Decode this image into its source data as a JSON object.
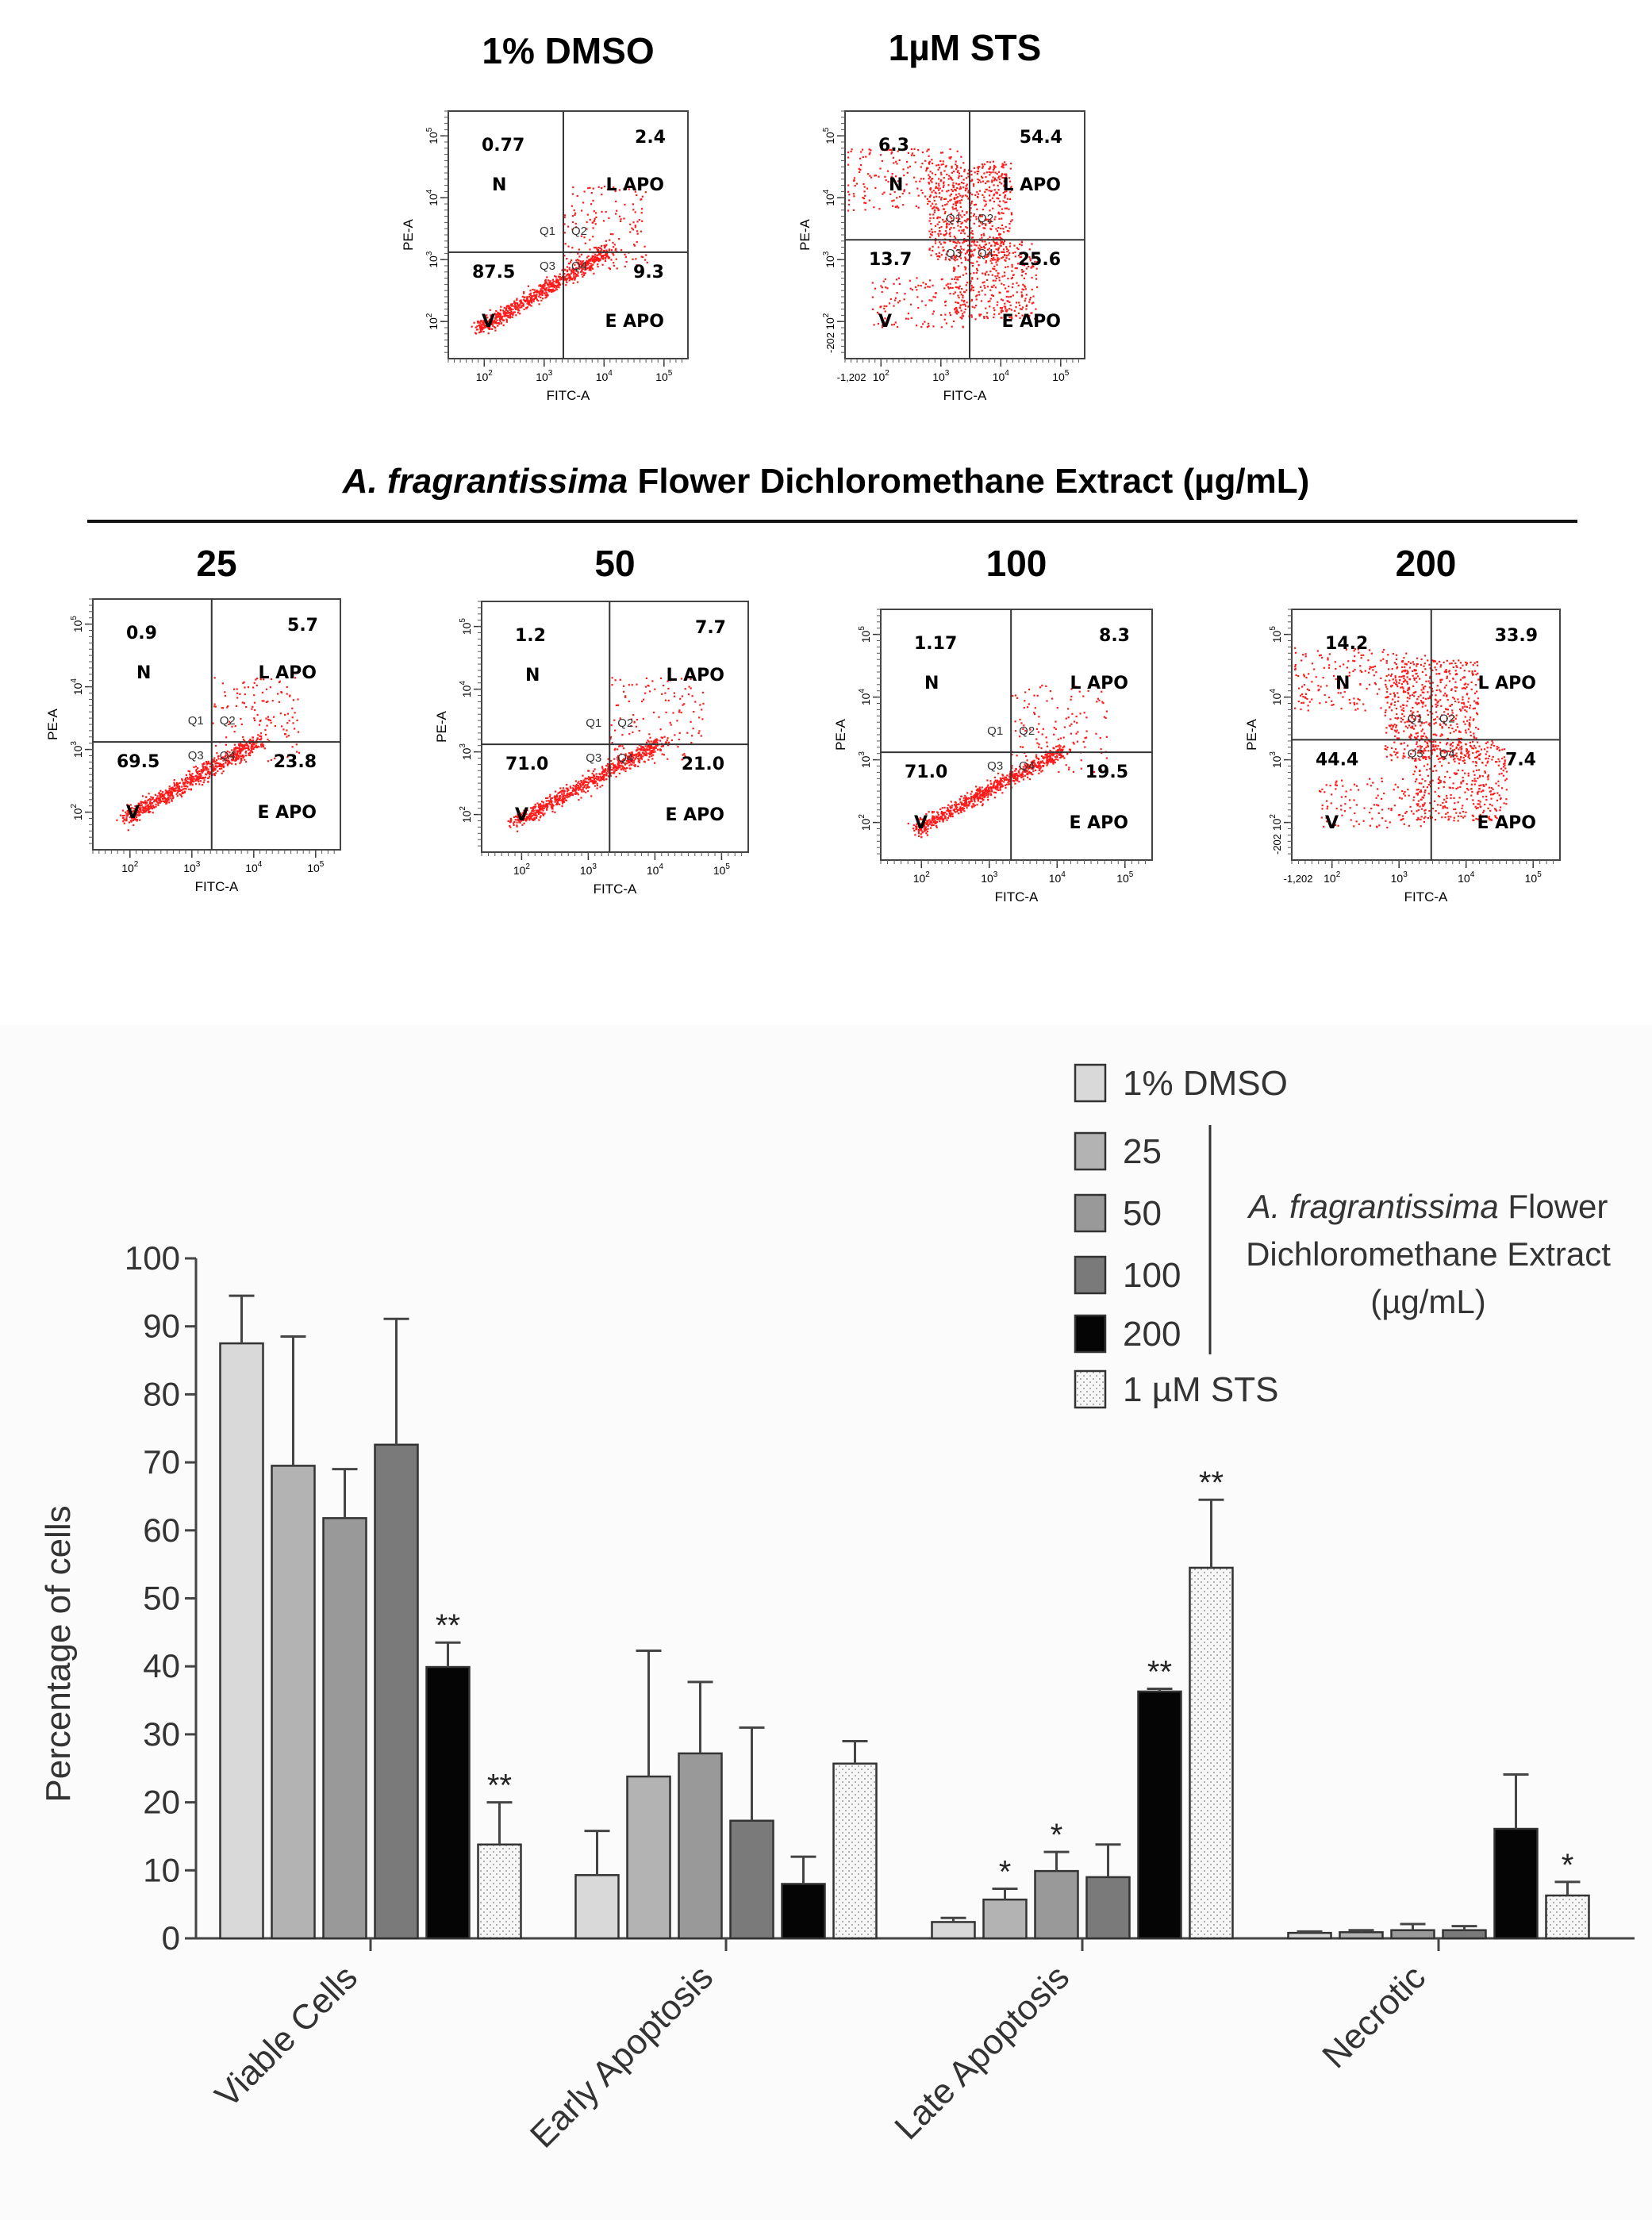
{
  "flow_panels": [
    {
      "title": "1% DMSO",
      "xlabel": "FITC-A",
      "ylabel": "PE-A",
      "q_tl": "0.77",
      "q_tr": "2.4",
      "q_bl": "87.5",
      "q_br": "9.3",
      "lab_n": "N",
      "lab_lapo": "L APO",
      "lab_v": "V",
      "lab_eapo": "E APO",
      "q1": "Q1",
      "q2": "Q2",
      "q3": "Q3",
      "q4": "Q4",
      "dense": "low"
    },
    {
      "title": "1µM STS",
      "xlabel": "FITC-A",
      "ylabel": "PE-A",
      "q_tl": "6.3",
      "q_tr": "54.4",
      "q_bl": "13.7",
      "q_br": "25.6",
      "lab_n": "N",
      "lab_lapo": "L APO",
      "lab_v": "V",
      "lab_eapo": "E APO",
      "q1": "Q1",
      "q2": "Q2",
      "q3": "Q3",
      "q4": "Q4",
      "dense": "high",
      "neg_tick_x": "-1,202",
      "neg_tick_y": "-202"
    },
    {
      "title": "25",
      "xlabel": "FITC-A",
      "ylabel": "PE-A",
      "q_tl": "0.9",
      "q_tr": "5.7",
      "q_bl": "69.5",
      "q_br": "23.8",
      "lab_n": "N",
      "lab_lapo": "L APO",
      "lab_v": "V",
      "lab_eapo": "E APO",
      "q1": "Q1",
      "q2": "Q2",
      "q3": "Q3",
      "q4": "Q4",
      "dense": "low"
    },
    {
      "title": "50",
      "xlabel": "FITC-A",
      "ylabel": "PE-A",
      "q_tl": "1.2",
      "q_tr": "7.7",
      "q_bl": "71.0",
      "q_br": "21.0",
      "lab_n": "N",
      "lab_lapo": "L APO",
      "lab_v": "V",
      "lab_eapo": "E APO",
      "q1": "Q1",
      "q2": "Q2",
      "q3": "Q3",
      "q4": "Q4",
      "dense": "low"
    },
    {
      "title": "100",
      "xlabel": "FITC-A",
      "ylabel": "PE-A",
      "q_tl": "1.17",
      "q_tr": "8.3",
      "q_bl": "71.0",
      "q_br": "19.5",
      "lab_n": "N",
      "lab_lapo": "L APO",
      "lab_v": "V",
      "lab_eapo": "E APO",
      "q1": "Q1",
      "q2": "Q2",
      "q3": "Q3",
      "q4": "Q4",
      "dense": "low"
    },
    {
      "title": "200",
      "xlabel": "FITC-A",
      "ylabel": "PE-A",
      "q_tl": "14.2",
      "q_tr": "33.9",
      "q_bl": "44.4",
      "q_br": "7.4",
      "lab_n": "N",
      "lab_lapo": "L APO",
      "lab_v": "V",
      "lab_eapo": "E APO",
      "q1": "Q1",
      "q2": "Q2",
      "q3": "Q3",
      "q4": "Q4",
      "dense": "high",
      "neg_tick_x": "-1,202",
      "neg_tick_y": "-202"
    }
  ],
  "section_heading": {
    "italic": "A. fragrantissima",
    "rest": " Flower Dichloromethane Extract (µg/mL)"
  },
  "tick_exponents": [
    "10",
    "2",
    "3",
    "4",
    "5"
  ],
  "chart_data": {
    "type": "bar",
    "ylabel": "Percentage of cells",
    "ylim": [
      0,
      100
    ],
    "yticks": [
      "0",
      "10",
      "20",
      "30",
      "40",
      "50",
      "60",
      "70",
      "80",
      "90",
      "100"
    ],
    "categories": [
      "Viable Cells",
      "Early Apoptosis",
      "Late Apoptosis",
      "Necrotic"
    ],
    "series": [
      {
        "name": "1% DMSO",
        "fill": "#d9d9d9",
        "pattern": "none",
        "values": [
          87.5,
          9.3,
          2.4,
          0.8
        ],
        "err": [
          7,
          6.5,
          0.6,
          0.2
        ],
        "sig": [
          "",
          "",
          "",
          ""
        ]
      },
      {
        "name": "25",
        "fill": "#b3b3b3",
        "pattern": "none",
        "values": [
          69.5,
          23.8,
          5.7,
          0.9
        ],
        "err": [
          19,
          18.5,
          1.6,
          0.3
        ],
        "sig": [
          "",
          "",
          "*",
          ""
        ]
      },
      {
        "name": "50",
        "fill": "#999999",
        "pattern": "none",
        "values": [
          61.8,
          27.2,
          9.9,
          1.2
        ],
        "err": [
          7.2,
          10.5,
          2.8,
          0.9
        ],
        "sig": [
          "",
          "",
          "*",
          ""
        ]
      },
      {
        "name": "100",
        "fill": "#7a7a7a",
        "pattern": "none",
        "values": [
          72.6,
          17.3,
          9.0,
          1.2
        ],
        "err": [
          18.5,
          13.7,
          4.8,
          0.6
        ],
        "sig": [
          "",
          "",
          "",
          ""
        ]
      },
      {
        "name": "200",
        "fill": "#050505",
        "pattern": "none",
        "values": [
          39.9,
          8.0,
          36.3,
          16.1
        ],
        "err": [
          3.6,
          4.0,
          0.4,
          8.0
        ],
        "sig": [
          "**",
          "",
          "**",
          ""
        ]
      },
      {
        "name": "1 µM STS",
        "fill": "#f4f4f4",
        "pattern": "dots",
        "values": [
          13.8,
          25.7,
          54.5,
          6.3
        ],
        "err": [
          6.2,
          3.3,
          10.0,
          2.0
        ],
        "sig": [
          "**",
          "",
          "**",
          "*"
        ]
      }
    ],
    "legend": {
      "group_text_italic": "A. fragrantissima",
      "group_text_line1_rest": " Flower",
      "group_text_line2": "Dichloromethane Extract",
      "group_text_line3": "(µg/mL)"
    },
    "grid": false
  }
}
